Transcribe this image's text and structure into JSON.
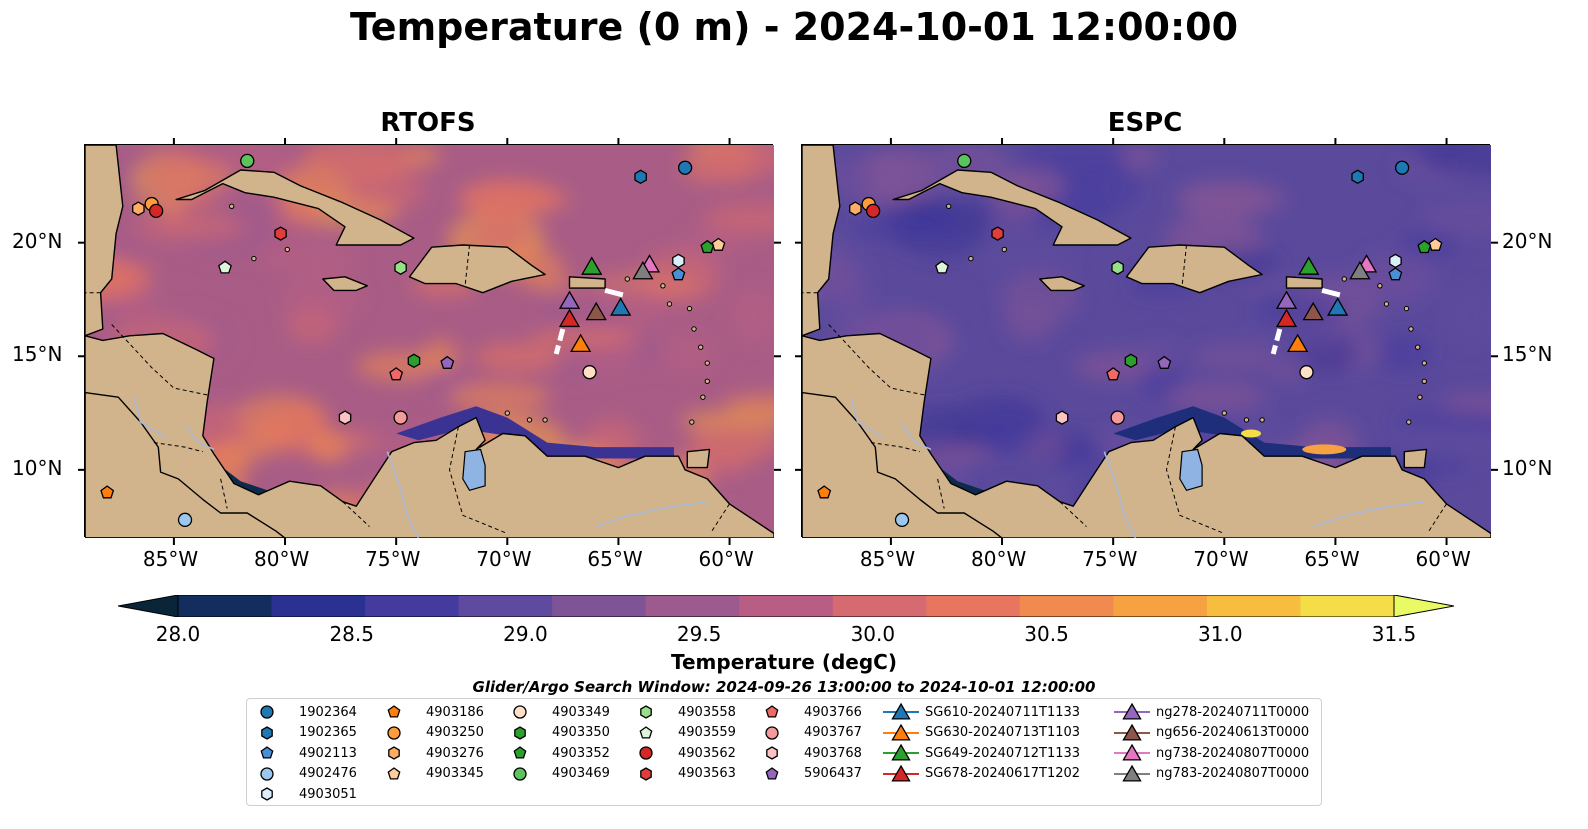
{
  "title": "Temperature (0 m) - 2024-10-01 12:00:00",
  "panels": [
    {
      "title": "RTOFS",
      "model": "warm"
    },
    {
      "title": "ESPC",
      "model": "cool"
    }
  ],
  "map": {
    "lon_range": [
      -89,
      -58
    ],
    "lat_range": [
      7,
      24.3
    ],
    "lon_ticks": [
      "85°W",
      "80°W",
      "75°W",
      "70°W",
      "65°W",
      "60°W"
    ],
    "lon_tick_values": [
      -85,
      -80,
      -75,
      -70,
      -65,
      -60
    ],
    "lat_ticks": [
      "20°N",
      "15°N",
      "10°N"
    ],
    "lat_tick_values": [
      20,
      15,
      10
    ],
    "land_color": "#d2b48c",
    "lake_color": "#8fb4e3",
    "river_color": "#a9b8d6"
  },
  "colorbar": {
    "label": "Temperature (degC)",
    "ticks": [
      "28.0",
      "28.5",
      "29.0",
      "29.5",
      "30.0",
      "30.5",
      "31.0",
      "31.5"
    ],
    "tick_values": [
      28.0,
      28.5,
      29.0,
      29.5,
      30.0,
      30.5,
      31.0,
      31.5
    ],
    "range": [
      28.0,
      31.5
    ],
    "colors": [
      "#0a2438",
      "#132d5e",
      "#2a3190",
      "#453a9e",
      "#5e4a9e",
      "#7e5497",
      "#9c5a8e",
      "#b85e84",
      "#d56a70",
      "#e8755f",
      "#f18a4f",
      "#f6a142",
      "#f7bd3e",
      "#f4dd47",
      "#e9fa64"
    ]
  },
  "search_window": "Glider/Argo Search Window: 2024-09-26 13:00:00 to 2024-10-01 12:00:00",
  "legend": {
    "columns": [
      [
        {
          "label": "1902364",
          "marker": "circle",
          "color": "#1f77b4"
        },
        {
          "label": "1902365",
          "marker": "hexagon",
          "color": "#1f77b4"
        },
        {
          "label": "4902113",
          "marker": "pentagon",
          "color": "#4a8fd6"
        },
        {
          "label": "4902476",
          "marker": "circle",
          "color": "#9cc8ef"
        },
        {
          "label": "4903051",
          "marker": "hexagon",
          "color": "#dbeefc"
        }
      ],
      [
        {
          "label": "4903186",
          "marker": "pentagon",
          "color": "#ff7f0e"
        },
        {
          "label": "4903250",
          "marker": "circle",
          "color": "#ff9b3d"
        },
        {
          "label": "4903276",
          "marker": "hexagon",
          "color": "#ffad66"
        },
        {
          "label": "4903345",
          "marker": "pentagon",
          "color": "#ffcc99"
        }
      ],
      [
        {
          "label": "4903349",
          "marker": "circle",
          "color": "#fde0c5"
        },
        {
          "label": "4903350",
          "marker": "hexagon",
          "color": "#2ca02c"
        },
        {
          "label": "4903352",
          "marker": "pentagon",
          "color": "#2ca02c"
        },
        {
          "label": "4903469",
          "marker": "circle",
          "color": "#5cc45c"
        }
      ],
      [
        {
          "label": "4903558",
          "marker": "hexagon",
          "color": "#98df8a"
        },
        {
          "label": "4903559",
          "marker": "pentagon",
          "color": "#ddf5d8"
        },
        {
          "label": "4903562",
          "marker": "circle",
          "color": "#d62728"
        },
        {
          "label": "4903563",
          "marker": "hexagon",
          "color": "#e03d3d"
        }
      ],
      [
        {
          "label": "4903766",
          "marker": "pentagon",
          "color": "#f06868"
        },
        {
          "label": "4903767",
          "marker": "circle",
          "color": "#f59a9a"
        },
        {
          "label": "4903768",
          "marker": "hexagon",
          "color": "#fbc3c3"
        },
        {
          "label": "5906437",
          "marker": "pentagon",
          "color": "#9467bd"
        }
      ],
      [
        {
          "label": "SG610-20240711T1133",
          "marker": "triangle",
          "color": "#1f77b4"
        },
        {
          "label": "SG630-20240713T1103",
          "marker": "triangle",
          "color": "#ff7f0e"
        },
        {
          "label": "SG649-20240712T1133",
          "marker": "triangle",
          "color": "#2ca02c"
        },
        {
          "label": "SG678-20240617T1202",
          "marker": "triangle",
          "color": "#d62728"
        }
      ],
      [
        {
          "label": "ng278-20240711T0000",
          "marker": "triangle",
          "color": "#9467bd"
        },
        {
          "label": "ng656-20240613T0000",
          "marker": "triangle",
          "color": "#8c564b"
        },
        {
          "label": "ng738-20240807T0000",
          "marker": "triangle",
          "color": "#e377c2"
        },
        {
          "label": "ng783-20240807T0000",
          "marker": "triangle",
          "color": "#7f7f7f"
        }
      ]
    ]
  },
  "observations": [
    {
      "id": "1902364",
      "lon": -62.0,
      "lat": 23.3
    },
    {
      "id": "1902365",
      "lon": -64.0,
      "lat": 22.9
    },
    {
      "id": "4902113",
      "lon": -62.3,
      "lat": 18.6
    },
    {
      "id": "4902476",
      "lon": -84.5,
      "lat": 7.8
    },
    {
      "id": "4903051",
      "lon": -62.3,
      "lat": 19.2
    },
    {
      "id": "4903186",
      "lon": -88.0,
      "lat": 9.0
    },
    {
      "id": "4903250",
      "lon": -86.0,
      "lat": 21.7
    },
    {
      "id": "4903276",
      "lon": -86.6,
      "lat": 21.5
    },
    {
      "id": "4903345",
      "lon": -60.5,
      "lat": 19.9
    },
    {
      "id": "4903349",
      "lon": -66.3,
      "lat": 14.3
    },
    {
      "id": "4903350",
      "lon": -74.2,
      "lat": 14.8
    },
    {
      "id": "4903352",
      "lon": -61.0,
      "lat": 19.8
    },
    {
      "id": "4903469",
      "lon": -81.7,
      "lat": 23.6
    },
    {
      "id": "4903558",
      "lon": -74.8,
      "lat": 18.9
    },
    {
      "id": "4903559",
      "lon": -82.7,
      "lat": 18.9
    },
    {
      "id": "4903562",
      "lon": -85.8,
      "lat": 21.4
    },
    {
      "id": "4903563",
      "lon": -80.2,
      "lat": 20.4
    },
    {
      "id": "4903766",
      "lon": -75.0,
      "lat": 14.2
    },
    {
      "id": "4903767",
      "lon": -74.8,
      "lat": 12.3
    },
    {
      "id": "4903768",
      "lon": -77.3,
      "lat": 12.3
    },
    {
      "id": "5906437",
      "lon": -72.7,
      "lat": 14.7
    },
    {
      "id": "SG610-20240711T1133",
      "lon": -64.9,
      "lat": 17.1
    },
    {
      "id": "SG630-20240713T1103",
      "lon": -66.7,
      "lat": 15.5
    },
    {
      "id": "SG649-20240712T1133",
      "lon": -66.2,
      "lat": 18.9
    },
    {
      "id": "SG678-20240617T1202",
      "lon": -67.2,
      "lat": 16.6
    },
    {
      "id": "ng278-20240711T0000",
      "lon": -67.2,
      "lat": 17.4
    },
    {
      "id": "ng656-20240613T0000",
      "lon": -66.0,
      "lat": 16.9
    },
    {
      "id": "ng738-20240807T0000",
      "lon": -63.6,
      "lat": 19.0
    },
    {
      "id": "ng783-20240807T0000",
      "lon": -63.9,
      "lat": 18.7
    }
  ]
}
